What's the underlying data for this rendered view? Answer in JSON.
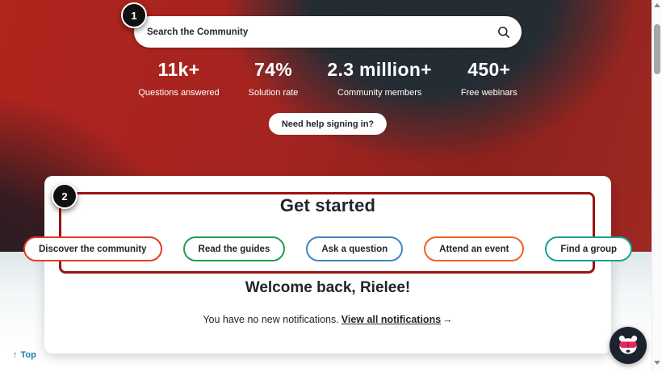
{
  "annotations": {
    "step1": "1",
    "step2": "2"
  },
  "search": {
    "placeholder": "Search the Community"
  },
  "stats": [
    {
      "value": "11k+",
      "label": "Questions answered"
    },
    {
      "value": "74%",
      "label": "Solution rate"
    },
    {
      "value": "2.3 million+",
      "label": "Community members"
    },
    {
      "value": "450+",
      "label": "Free webinars"
    }
  ],
  "hero": {
    "help_button": "Need help signing in?"
  },
  "get_started": {
    "title": "Get started",
    "buttons": [
      {
        "label": "Discover the community",
        "color": "#e23b27"
      },
      {
        "label": "Read the guides",
        "color": "#1f9e52"
      },
      {
        "label": "Ask a question",
        "color": "#4085c6"
      },
      {
        "label": "Attend an event",
        "color": "#f4611e"
      },
      {
        "label": "Find a group",
        "color": "#17a390"
      }
    ]
  },
  "welcome": {
    "title": "Welcome back, Rielee!",
    "notification_text": "You have no new notifications.",
    "notification_link": "View all notifications",
    "arrow": "→"
  },
  "footer": {
    "top_arrow": "↑",
    "top_label": "Top"
  },
  "colors": {
    "annotation_box": "#9b1410",
    "annotation_badge": "#101010",
    "top_link": "#1a7fa0",
    "hero_navy": "#232b33",
    "hero_red": "#b2241e"
  }
}
